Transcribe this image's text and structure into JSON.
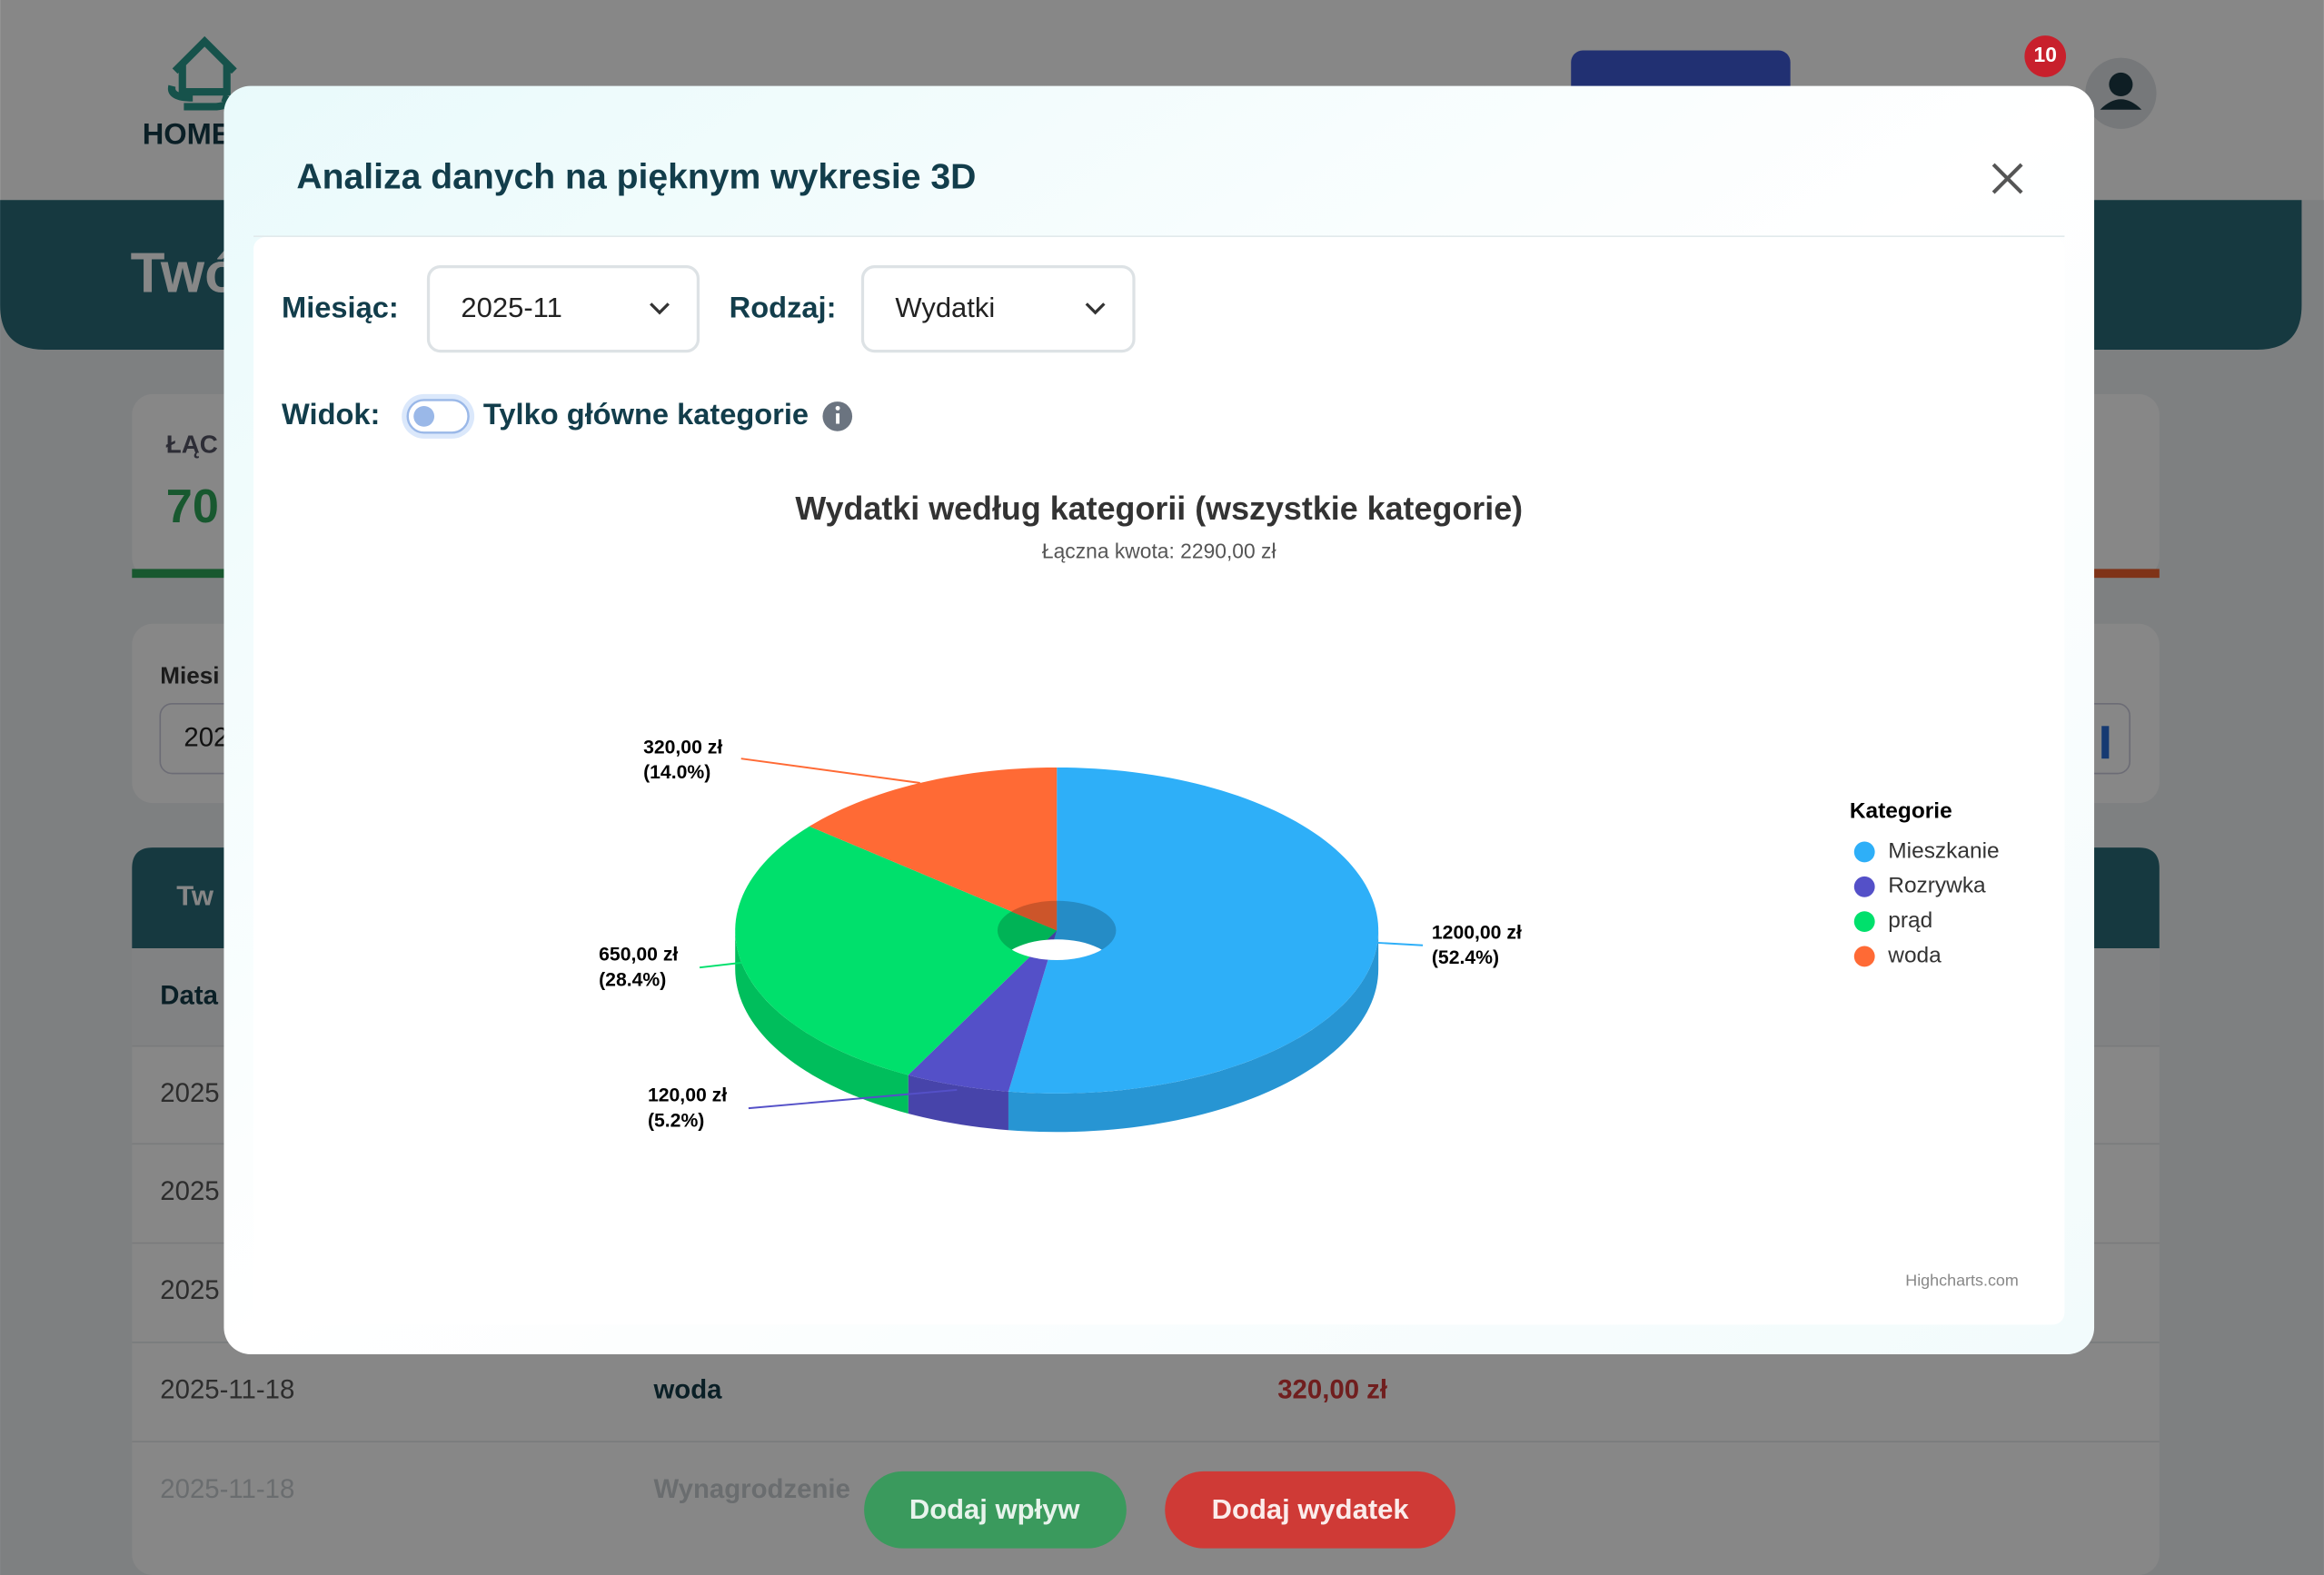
{
  "background": {
    "logo": "HOME",
    "notification_count": "10",
    "banner_title": "Twó",
    "summary_label": "ŁĄC",
    "summary_value": "70",
    "filter_label": "Miesi",
    "filter_value": "202",
    "table_title": "Tw",
    "table_header": "Data",
    "rows": [
      [
        "2025"
      ],
      [
        "2025"
      ],
      [
        "2025"
      ],
      [
        "2025-11-18",
        "woda",
        "320,00 zł"
      ],
      [
        "2025-11-18",
        "Wynagrodzenie"
      ]
    ],
    "buttons": [
      "Dodaj wpływ",
      "Dodaj wydatek"
    ]
  },
  "modal": {
    "title": "Analiza danych na pięknym wykresie 3D",
    "month_label": "Miesiąc:",
    "month_value": "2025-11",
    "type_label": "Rodzaj:",
    "type_value": "Wydatki",
    "view_label": "Widok:",
    "toggle_label": "Tylko główne kategorie"
  },
  "chart_data": {
    "type": "pie",
    "three_d": true,
    "donut": true,
    "title": "Wydatki według kategorii (wszystkie kategorie)",
    "subtitle": "Łączna kwota: 2290,00 zł",
    "categories": [
      "Mieszkanie",
      "Rozrywka",
      "prąd",
      "woda"
    ],
    "values": [
      1200,
      120,
      650,
      320
    ],
    "value_labels": [
      "1200,00 zł",
      "120,00 zł",
      "650,00 zł",
      "320,00 zł"
    ],
    "percent_labels": [
      "(52.4%)",
      "(5.2%)",
      "(28.4%)",
      "(14.0%)"
    ],
    "colors": [
      "#2eaff8",
      "#5450c8",
      "#00e06c",
      "#ff6a35"
    ],
    "legend_title": "Kategorie",
    "legend": "right",
    "credits": "Highcharts.com"
  }
}
